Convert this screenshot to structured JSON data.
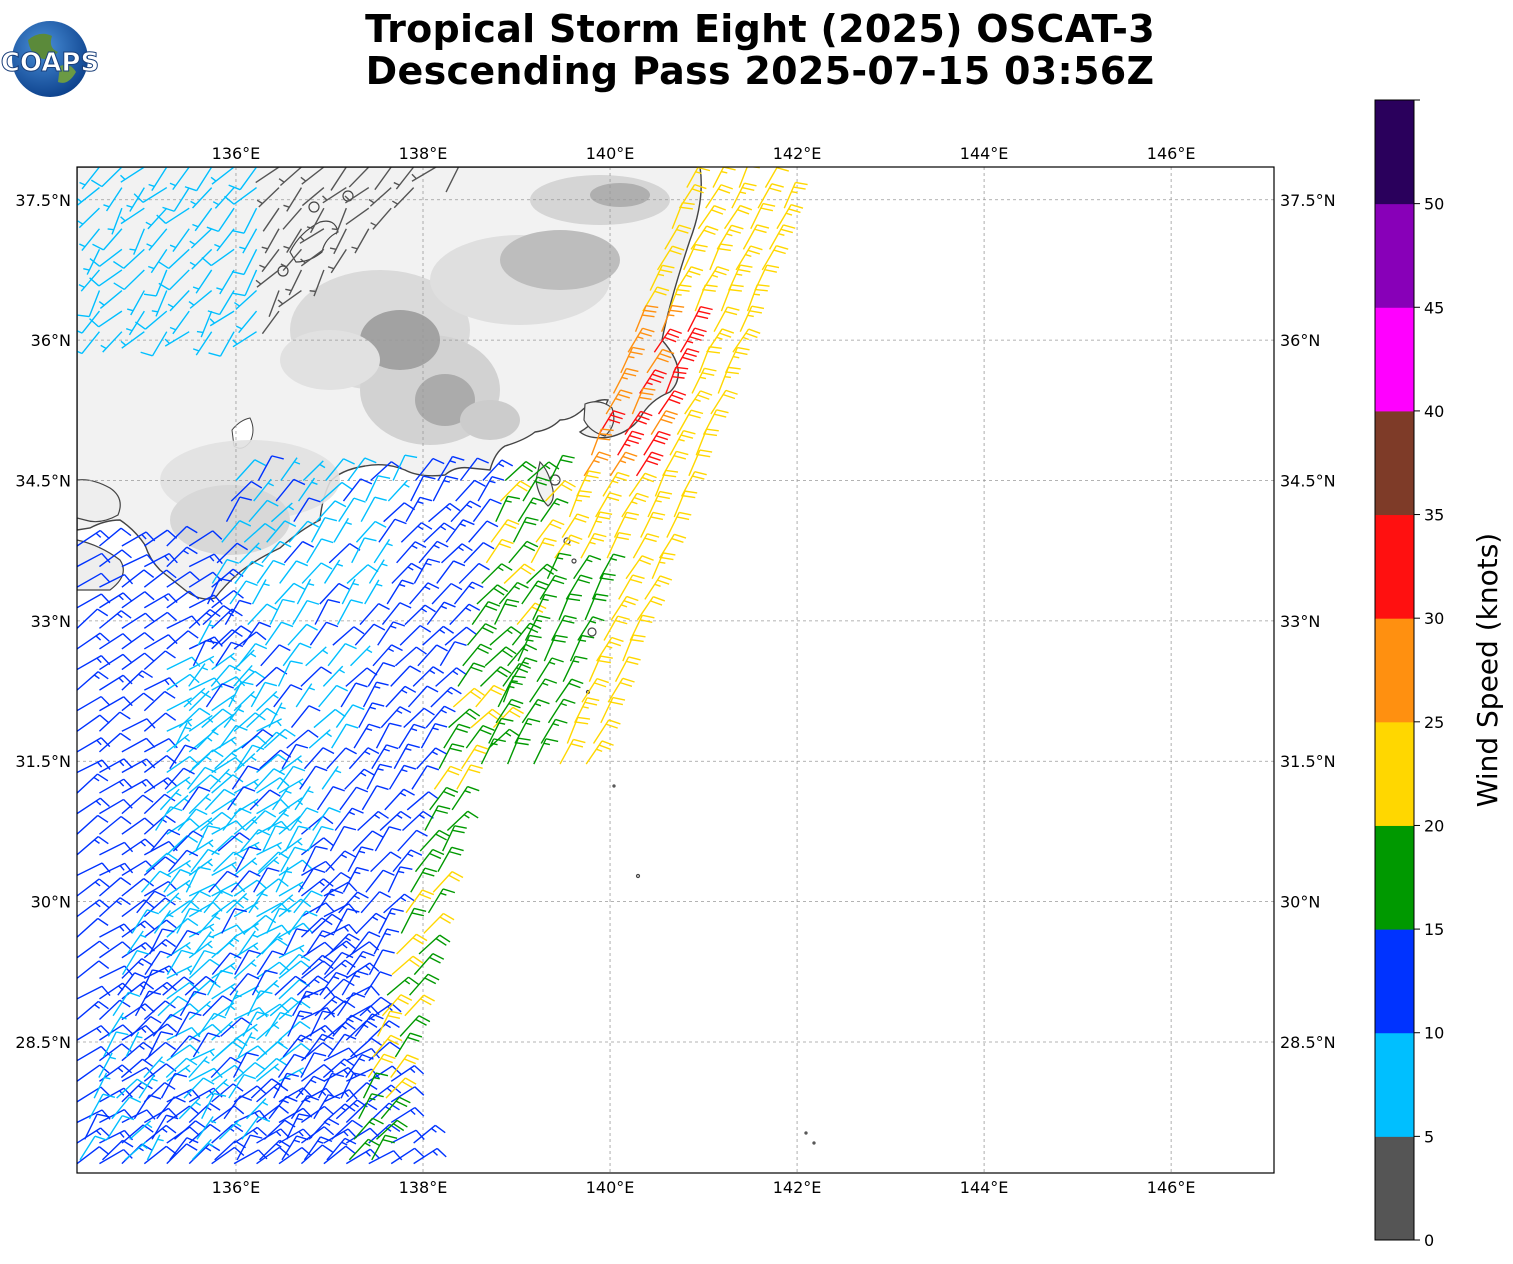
{
  "title": {
    "line1": "Tropical Storm Eight (2025) OSCAT-3",
    "line2": "Descending Pass 2025-07-15 03:56Z"
  },
  "logo": {
    "text": "COAPS",
    "icon": "globe-icon"
  },
  "map": {
    "lon_range": [
      134.3,
      147.1
    ],
    "lat_range": [
      27.1,
      37.85
    ],
    "lon_ticks": [
      136,
      138,
      140,
      142,
      144,
      146
    ],
    "lon_tick_labels": [
      "136°E",
      "138°E",
      "140°E",
      "142°E",
      "144°E",
      "146°E"
    ],
    "lat_ticks": [
      37.5,
      36,
      34.5,
      33,
      31.5,
      30,
      28.5
    ],
    "lat_tick_labels": [
      "37.5°N",
      "36°N",
      "34.5°N",
      "33°N",
      "31.5°N",
      "30°N",
      "28.5°N"
    ],
    "gridlines": true,
    "land_color": "#f2f2f2",
    "coastline_color": "#444444"
  },
  "colorbar": {
    "label": "Wind Speed (knots)",
    "bounds": [
      0,
      5,
      10,
      15,
      20,
      25,
      30,
      35,
      40,
      45,
      50,
      55
    ],
    "tick_labels": [
      "0",
      "5",
      "10",
      "15",
      "20",
      "25",
      "30",
      "35",
      "40",
      "45",
      "50"
    ],
    "colors": [
      "#555555",
      "#00bfff",
      "#0033ff",
      "#009900",
      "#ffd700",
      "#ff9010",
      "#ff1010",
      "#7e3b28",
      "#ff00ff",
      "#8800b8",
      "#2a005c"
    ]
  },
  "chart_data": {
    "type": "scatter",
    "title": "Tropical Storm Eight (2025) OSCAT-3 Descending Pass 2025-07-15 03:56Z",
    "xlabel": "",
    "ylabel": "",
    "variable": "Wind Speed (knots)",
    "xlim": [
      134.3,
      147.1
    ],
    "ylim": [
      27.1,
      37.85
    ],
    "swaths": [
      {
        "name": "western",
        "lat": [
          33.8,
          27.1
        ],
        "lon_west": [
          134.3,
          134.3
        ],
        "lon_east": [
          135.6,
          138.1
        ]
      },
      {
        "name": "northwest",
        "lat": [
          37.85,
          36.0
        ],
        "lon_west": [
          134.3,
          134.3
        ],
        "lon_east": [
          138.4,
          136.2
        ]
      },
      {
        "name": "central",
        "lat": [
          34.5,
          27.1
        ],
        "lon_west": [
          136.0,
          134.3
        ],
        "lon_east": [
          139.4,
          137.6
        ]
      },
      {
        "name": "eastern",
        "lat": [
          37.85,
          31.4
        ],
        "lon_west": [
          140.9,
          138.6
        ],
        "lon_east": [
          142.0,
          140.0
        ]
      }
    ],
    "speed_range_knots": [
      0,
      35
    ]
  }
}
